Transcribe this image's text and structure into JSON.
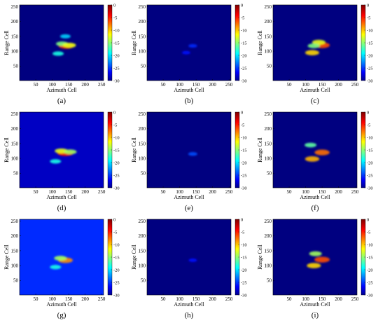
{
  "chart_data": [
    {
      "type": "heatmap",
      "panel_label": "(a)",
      "xlabel": "Azimuth Cell",
      "ylabel": "Range Cell",
      "xticks": [
        50,
        100,
        150,
        200,
        250
      ],
      "yticks": [
        50,
        100,
        150,
        200,
        250
      ],
      "xlim": [
        1,
        256
      ],
      "ylim": [
        1,
        256
      ],
      "colorbar_ticks": [
        0,
        -5,
        -10,
        -15,
        -20,
        -25,
        -30
      ],
      "colorbar_range": [
        -30,
        0
      ],
      "colormap": "jet",
      "background_level": -30,
      "scatterer_blobs": [
        {
          "x": 143,
          "y": 118,
          "level": -5
        },
        {
          "x": 130,
          "y": 125,
          "level": -15
        },
        {
          "x": 152,
          "y": 120,
          "level": -12
        },
        {
          "x": 118,
          "y": 92,
          "level": -18
        },
        {
          "x": 140,
          "y": 150,
          "level": -20
        }
      ]
    },
    {
      "type": "heatmap",
      "panel_label": "(b)",
      "xlabel": "Azimuth Cell",
      "ylabel": "Range Cell",
      "xticks": [
        50,
        100,
        150,
        200,
        250
      ],
      "yticks": [
        50,
        100,
        150,
        200,
        250
      ],
      "xlim": [
        1,
        256
      ],
      "ylim": [
        1,
        256
      ],
      "colorbar_ticks": [
        0,
        -5,
        -10,
        -15,
        -20,
        -25,
        -30
      ],
      "colorbar_range": [
        -30,
        0
      ],
      "colormap": "jet",
      "background_level": -30,
      "scatterer_blobs": [
        {
          "x": 140,
          "y": 118,
          "level": -25
        },
        {
          "x": 120,
          "y": 95,
          "level": -26
        }
      ]
    },
    {
      "type": "heatmap",
      "panel_label": "(c)",
      "xlabel": "Azimuth Cell",
      "ylabel": "Range Cell",
      "xticks": [
        50,
        100,
        150,
        200,
        250
      ],
      "yticks": [
        50,
        100,
        150,
        200,
        250
      ],
      "xlim": [
        1,
        256
      ],
      "ylim": [
        1,
        256
      ],
      "colorbar_ticks": [
        0,
        -5,
        -10,
        -15,
        -20,
        -25,
        -30
      ],
      "colorbar_range": [
        -30,
        0
      ],
      "colormap": "jet",
      "background_level": -30,
      "scatterer_blobs": [
        {
          "x": 150,
          "y": 120,
          "level": -6
        },
        {
          "x": 140,
          "y": 130,
          "level": -12
        },
        {
          "x": 120,
          "y": 95,
          "level": -10
        },
        {
          "x": 125,
          "y": 118,
          "level": -15
        }
      ]
    },
    {
      "type": "heatmap",
      "panel_label": "(d)",
      "xlabel": "Azimuth Cell",
      "ylabel": "Range Cell",
      "xticks": [
        50,
        100,
        150,
        200,
        250
      ],
      "yticks": [
        50,
        100,
        150,
        200,
        250
      ],
      "xlim": [
        1,
        256
      ],
      "ylim": [
        1,
        256
      ],
      "colorbar_ticks": [
        0,
        -5,
        -10,
        -15,
        -20,
        -25,
        -30
      ],
      "colorbar_range": [
        -30,
        0
      ],
      "colormap": "jet",
      "background_level": -28,
      "scatterer_blobs": [
        {
          "x": 140,
          "y": 118,
          "level": -4
        },
        {
          "x": 128,
          "y": 125,
          "level": -12
        },
        {
          "x": 155,
          "y": 122,
          "level": -14
        },
        {
          "x": 110,
          "y": 90,
          "level": -18
        }
      ]
    },
    {
      "type": "heatmap",
      "panel_label": "(e)",
      "xlabel": "Azimuth Cell",
      "ylabel": "Range Cell",
      "xticks": [
        50,
        100,
        150,
        200,
        250
      ],
      "yticks": [
        50,
        100,
        150,
        200,
        250
      ],
      "xlim": [
        1,
        256
      ],
      "ylim": [
        1,
        256
      ],
      "colorbar_ticks": [
        0,
        -5,
        -10,
        -15,
        -20,
        -25,
        -30
      ],
      "colorbar_range": [
        -30,
        0
      ],
      "colormap": "jet",
      "background_level": -30,
      "scatterer_blobs": [
        {
          "x": 140,
          "y": 115,
          "level": -24
        }
      ]
    },
    {
      "type": "heatmap",
      "panel_label": "(f)",
      "xlabel": "Azimuth Cell",
      "ylabel": "Range Cell",
      "xticks": [
        50,
        100,
        150,
        200,
        250
      ],
      "yticks": [
        50,
        100,
        150,
        200,
        250
      ],
      "xlim": [
        1,
        256
      ],
      "ylim": [
        1,
        256
      ],
      "colorbar_ticks": [
        0,
        -5,
        -10,
        -15,
        -20,
        -25,
        -30
      ],
      "colorbar_range": [
        -30,
        0
      ],
      "colormap": "jet",
      "background_level": -30,
      "scatterer_blobs": [
        {
          "x": 150,
          "y": 120,
          "level": -7
        },
        {
          "x": 120,
          "y": 98,
          "level": -9
        },
        {
          "x": 115,
          "y": 145,
          "level": -16
        }
      ]
    },
    {
      "type": "heatmap",
      "panel_label": "(g)",
      "xlabel": "Azimuth Cell",
      "ylabel": "Range Cell",
      "xticks": [
        50,
        100,
        150,
        200,
        250
      ],
      "yticks": [
        50,
        100,
        150,
        200,
        250
      ],
      "xlim": [
        1,
        256
      ],
      "ylim": [
        1,
        256
      ],
      "colorbar_ticks": [
        0,
        -5,
        -10,
        -15,
        -20,
        -25,
        -30
      ],
      "colorbar_range": [
        -30,
        0
      ],
      "colormap": "jet",
      "background_level": -25,
      "scatterer_blobs": [
        {
          "x": 140,
          "y": 118,
          "level": -8
        },
        {
          "x": 125,
          "y": 125,
          "level": -14
        },
        {
          "x": 110,
          "y": 95,
          "level": -18
        }
      ]
    },
    {
      "type": "heatmap",
      "panel_label": "(h)",
      "xlabel": "Azimuth Cell",
      "ylabel": "Range Cell",
      "xticks": [
        50,
        100,
        150,
        200,
        250
      ],
      "yticks": [
        50,
        100,
        150,
        200,
        250
      ],
      "xlim": [
        1,
        256
      ],
      "ylim": [
        1,
        256
      ],
      "colorbar_ticks": [
        0,
        -5,
        -10,
        -15,
        -20,
        -25,
        -30
      ],
      "colorbar_range": [
        -30,
        0
      ],
      "colormap": "jet",
      "background_level": -30,
      "scatterer_blobs": [
        {
          "x": 140,
          "y": 118,
          "level": -26
        }
      ]
    },
    {
      "type": "heatmap",
      "panel_label": "(i)",
      "xlabel": "Azimuth Cell",
      "ylabel": "Range Cell",
      "xticks": [
        50,
        100,
        150,
        200,
        250
      ],
      "yticks": [
        50,
        100,
        150,
        200,
        250
      ],
      "xlim": [
        1,
        256
      ],
      "ylim": [
        1,
        256
      ],
      "colorbar_ticks": [
        0,
        -5,
        -10,
        -15,
        -20,
        -25,
        -30
      ],
      "colorbar_range": [
        -30,
        0
      ],
      "colormap": "jet",
      "background_level": -30,
      "scatterer_blobs": [
        {
          "x": 150,
          "y": 120,
          "level": -6
        },
        {
          "x": 125,
          "y": 100,
          "level": -10
        },
        {
          "x": 130,
          "y": 140,
          "level": -14
        }
      ]
    }
  ]
}
